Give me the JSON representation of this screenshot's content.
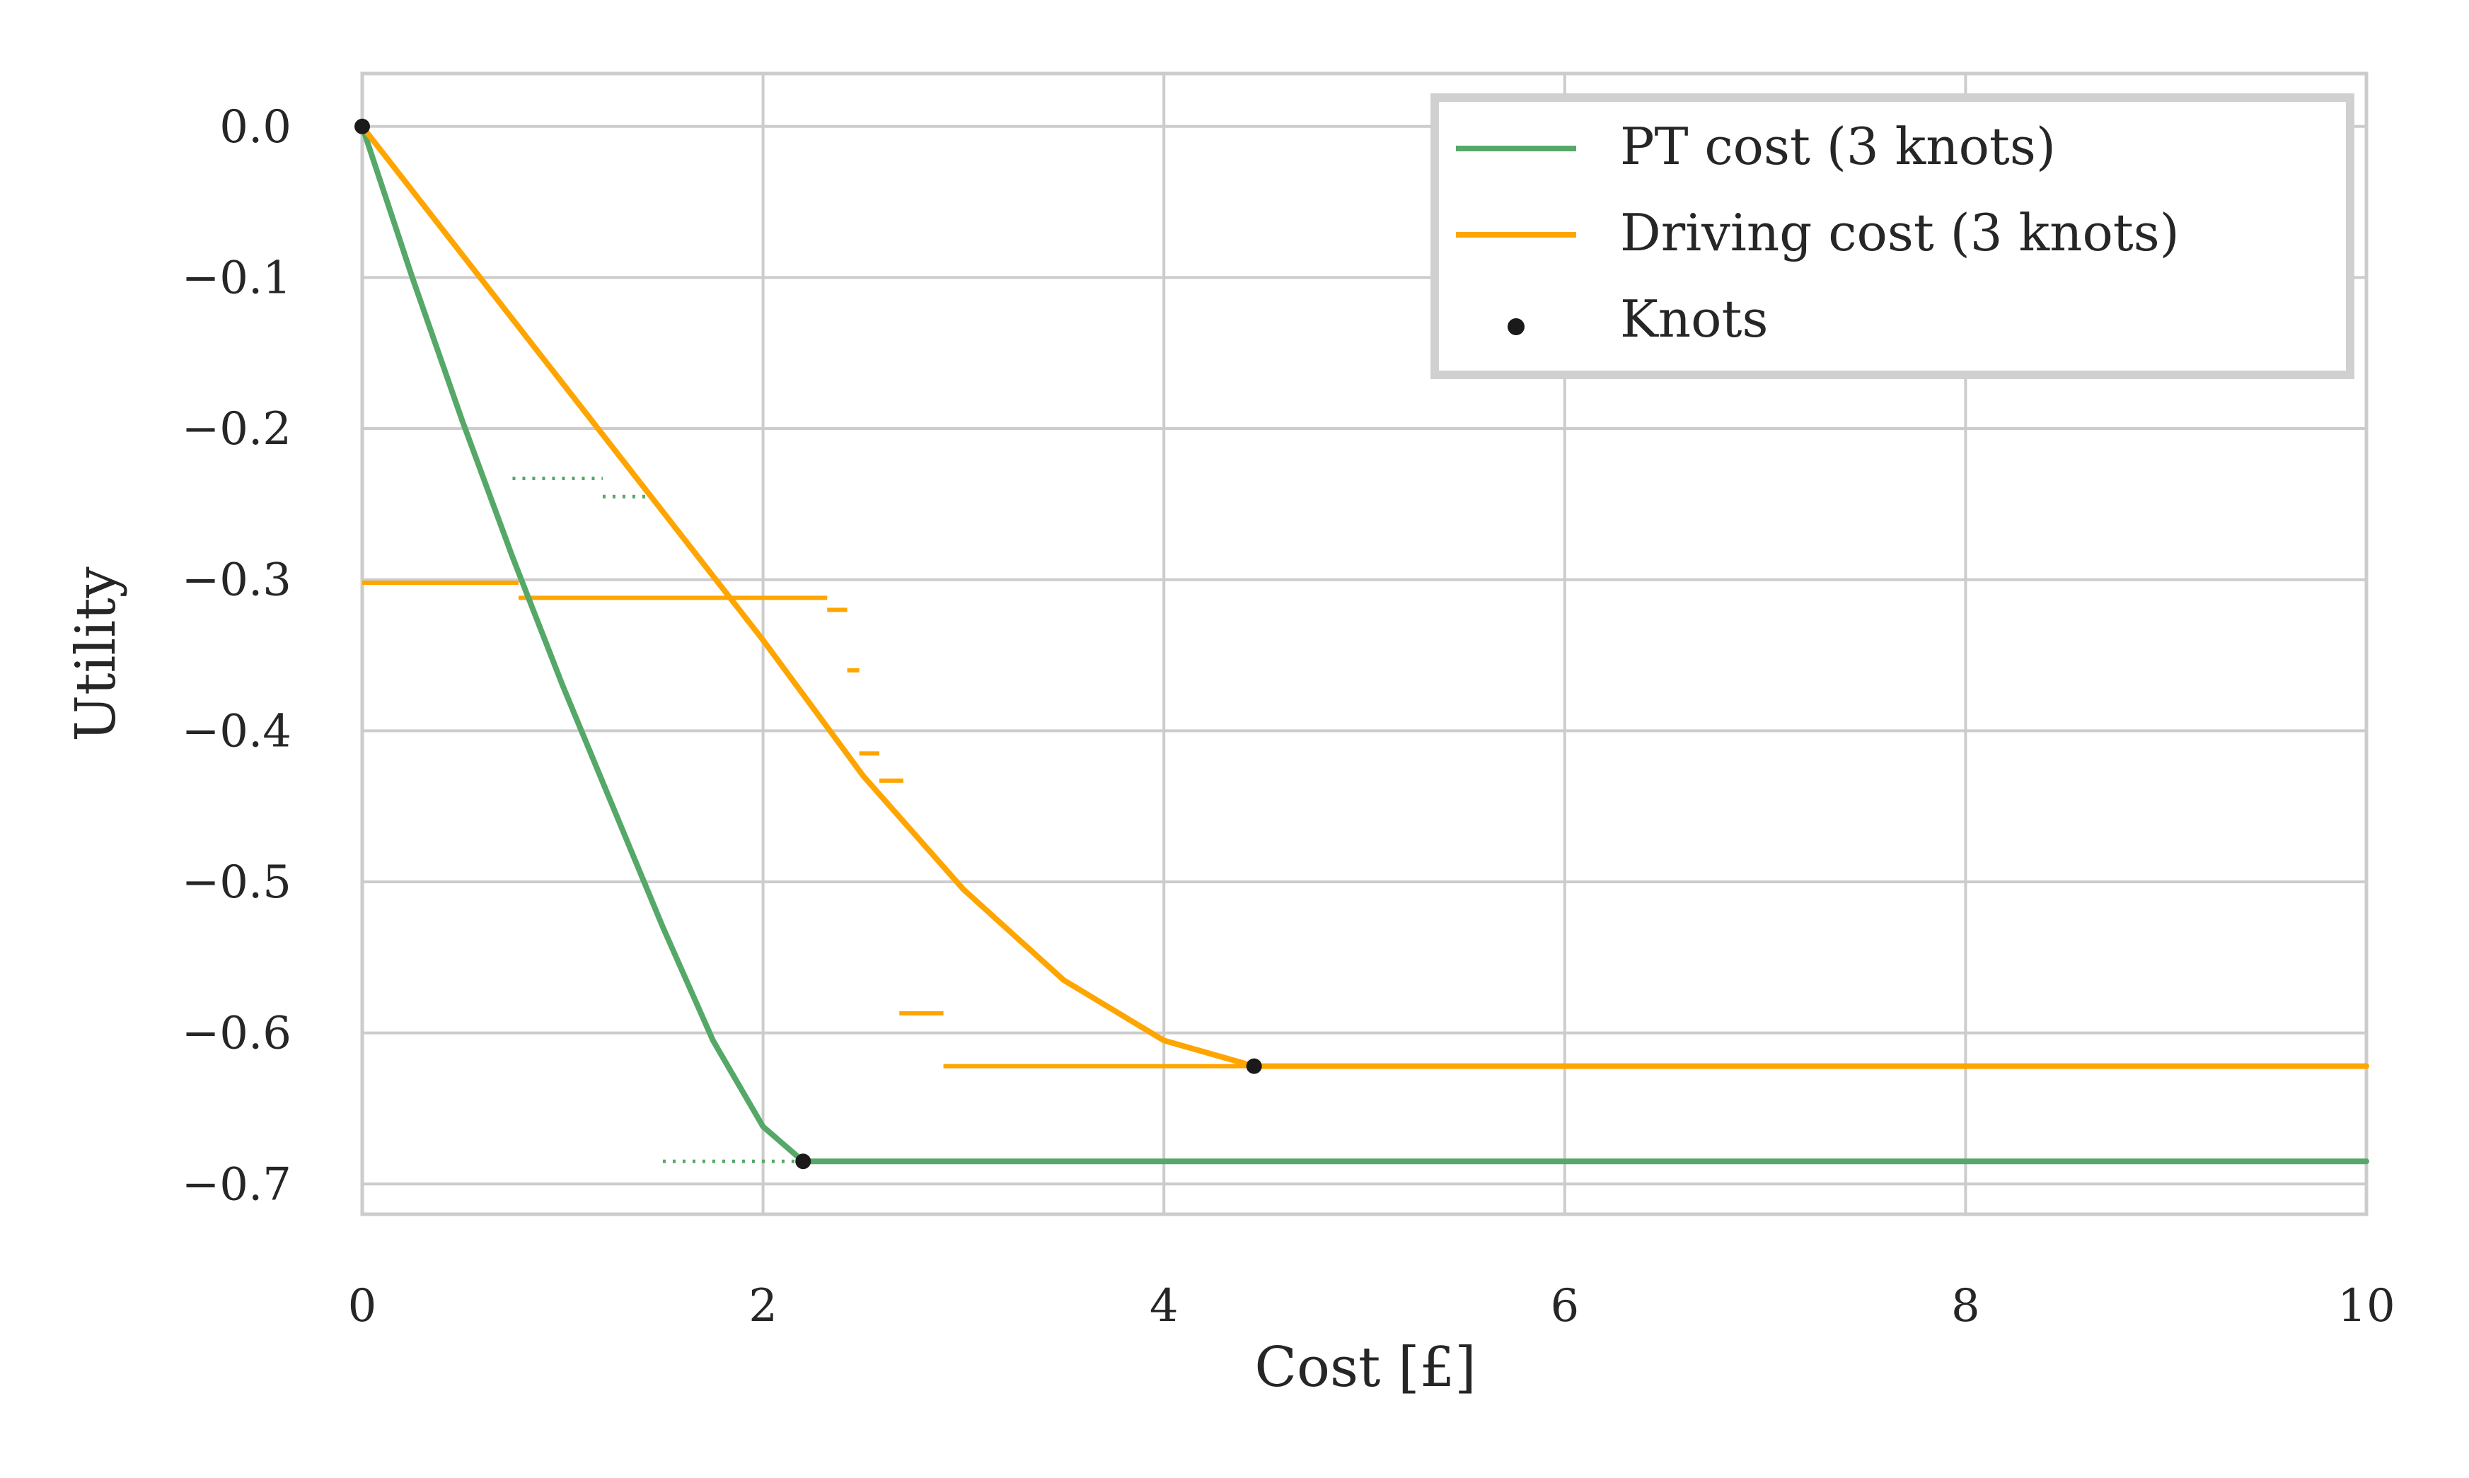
{
  "chart_data": {
    "type": "line",
    "xlabel": "Cost [£]",
    "ylabel": "Utility",
    "xlim": [
      0,
      10
    ],
    "ylim": [
      -0.72,
      0.035
    ],
    "x_ticks": [
      0,
      2,
      4,
      6,
      8,
      10
    ],
    "x_tick_labels": [
      "0",
      "2",
      "4",
      "6",
      "8",
      "10"
    ],
    "y_ticks": [
      0.0,
      -0.1,
      -0.2,
      -0.3,
      -0.4,
      -0.5,
      -0.6,
      -0.7
    ],
    "y_tick_labels": [
      "0.0",
      "−0.1",
      "−0.2",
      "−0.3",
      "−0.4",
      "−0.5",
      "−0.6",
      "−0.7"
    ],
    "grid": true,
    "legend_position": "top-right",
    "series": [
      {
        "name": "PT cost (3 knots)",
        "color": "#55a868",
        "x": [
          0,
          0.25,
          0.5,
          0.75,
          1.0,
          1.25,
          1.5,
          1.75,
          2.0,
          2.2,
          3,
          4,
          5,
          6,
          7,
          8,
          9,
          10
        ],
        "y": [
          0,
          -0.1,
          -0.195,
          -0.285,
          -0.37,
          -0.45,
          -0.53,
          -0.605,
          -0.662,
          -0.685,
          -0.685,
          -0.685,
          -0.685,
          -0.685,
          -0.685,
          -0.685,
          -0.685,
          -0.685
        ]
      },
      {
        "name": "Driving cost (3 knots)",
        "color": "#ffa500",
        "x": [
          0,
          0.5,
          1.0,
          1.5,
          2.0,
          2.5,
          3.0,
          3.5,
          4.0,
          4.45,
          5,
          6,
          7,
          8,
          9,
          10
        ],
        "y": [
          0,
          -0.085,
          -0.17,
          -0.255,
          -0.34,
          -0.43,
          -0.505,
          -0.565,
          -0.605,
          -0.622,
          -0.622,
          -0.622,
          -0.622,
          -0.622,
          -0.622,
          -0.622
        ]
      }
    ],
    "knots": {
      "name": "Knots",
      "color": "#1a1a1a",
      "x": [
        0,
        2.2,
        4.45
      ],
      "y": [
        0,
        -0.685,
        -0.622
      ]
    },
    "step_segments": {
      "driving": {
        "color": "#ffa500",
        "segments": [
          [
            0.0,
            0.78,
            -0.302
          ],
          [
            0.78,
            2.32,
            -0.312
          ],
          [
            2.32,
            2.42,
            -0.32
          ],
          [
            2.42,
            2.48,
            -0.36
          ],
          [
            2.48,
            2.58,
            -0.415
          ],
          [
            2.58,
            2.7,
            -0.433
          ],
          [
            2.68,
            2.9,
            -0.587
          ],
          [
            2.9,
            10.0,
            -0.622
          ]
        ]
      },
      "pt": {
        "color": "#55a868",
        "dotted": [
          [
            0.75,
            1.2,
            -0.233
          ],
          [
            1.2,
            1.45,
            -0.245
          ],
          [
            1.5,
            2.2,
            -0.685
          ]
        ]
      }
    }
  }
}
